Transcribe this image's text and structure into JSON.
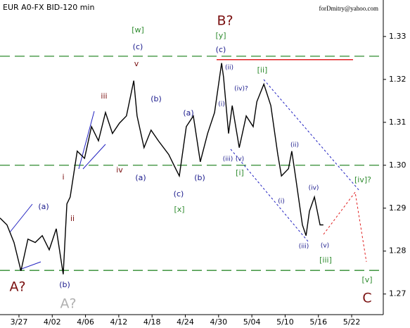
{
  "chart_data": {
    "type": "line",
    "title": "EUR A0-FX BID-120 min",
    "subtitle": "forDmitry@yahoo.com",
    "color": "#000000",
    "x": [
      -0.57,
      -0.36,
      -0.15,
      0.06,
      0.27,
      0.49,
      0.7,
      0.91,
      1.12,
      1.33,
      1.44,
      1.54,
      1.75,
      1.97,
      2.18,
      2.39,
      2.6,
      2.81,
      3.02,
      3.23,
      3.45,
      3.55,
      3.76,
      3.97,
      4.19,
      4.5,
      4.71,
      4.82,
      5.03,
      5.24,
      5.45,
      5.67,
      5.88,
      6.09,
      6.15,
      6.3,
      6.41,
      6.62,
      6.83,
      7.04,
      7.15,
      7.36,
      7.57,
      7.78,
      7.89,
      8.1,
      8.2,
      8.31,
      8.52,
      8.63,
      8.73,
      8.88,
      9.05,
      9.15
    ],
    "values": [
      1.2877,
      1.2861,
      1.282,
      1.2754,
      1.2828,
      1.282,
      1.2836,
      1.2803,
      1.2852,
      1.2746,
      1.291,
      1.2926,
      1.3033,
      1.3016,
      1.309,
      1.3057,
      1.3123,
      1.3074,
      1.3098,
      1.3115,
      1.3197,
      1.3115,
      1.3041,
      1.3082,
      1.3057,
      1.3025,
      1.2992,
      1.2975,
      1.309,
      1.3115,
      1.3008,
      1.3074,
      1.3123,
      1.3238,
      1.3205,
      1.3074,
      1.3139,
      1.3041,
      1.3115,
      1.309,
      1.3148,
      1.3189,
      1.3139,
      1.3025,
      1.2975,
      1.2992,
      1.3033,
      1.2975,
      1.2861,
      1.2836,
      1.2893,
      1.2926,
      1.2861,
      1.2861
    ],
    "xlim": [
      -0.57,
      10.95
    ],
    "xticks": [
      {
        "value": 0,
        "label": "3/27"
      },
      {
        "value": 1,
        "label": "4/02"
      },
      {
        "value": 2,
        "label": "4/06"
      },
      {
        "value": 3,
        "label": "4/12"
      },
      {
        "value": 4,
        "label": "4/18"
      },
      {
        "value": 5,
        "label": "4/24"
      },
      {
        "value": 6,
        "label": "4/30"
      },
      {
        "value": 7,
        "label": "5/04"
      },
      {
        "value": 8,
        "label": "5/10"
      },
      {
        "value": 9,
        "label": "5/16"
      },
      {
        "value": 10,
        "label": "5/22"
      }
    ],
    "ylim": [
      1.2652,
      1.3385
    ],
    "yticks": [
      1.27,
      1.28,
      1.29,
      {
        "value": 1.3,
        "label": "1.30"
      },
      1.31,
      1.32,
      1.33
    ],
    "levels": [
      1.3254,
      1.3,
      1.2755
    ],
    "level_color": "#2e8b2e",
    "resistance": 1.3246,
    "resistance_color": "#e02020",
    "annotations": [
      {
        "text": "A?",
        "color": "#7a1010"
      },
      {
        "text": "(b)",
        "color": "#1a1a8c"
      },
      {
        "text": "A?",
        "color": "#b0b0b0"
      },
      {
        "text": "(a)",
        "color": "#1a1a8c"
      },
      {
        "text": "i",
        "color": "#7a1010"
      },
      {
        "text": "ii",
        "color": "#7a1010"
      },
      {
        "text": "iii",
        "color": "#7a1010"
      },
      {
        "text": "iv",
        "color": "#7a1010"
      },
      {
        "text": "v",
        "color": "#7a1010"
      },
      {
        "text": "[w]",
        "color": "#2e8b2e"
      },
      {
        "text": "(c)",
        "color": "#1a1a8c"
      },
      {
        "text": "(b)",
        "color": "#1a1a8c"
      },
      {
        "text": "(a)",
        "color": "#1a1a8c"
      },
      {
        "text": "(a)",
        "color": "#1a1a8c"
      },
      {
        "text": "(c)",
        "color": "#1a1a8c"
      },
      {
        "text": "[x]",
        "color": "#2e8b2e"
      },
      {
        "text": "(b)",
        "color": "#1a1a8c"
      },
      {
        "text": "B?",
        "color": "#7a1010"
      },
      {
        "text": "[y]",
        "color": "#2e8b2e"
      },
      {
        "text": "(c)",
        "color": "#1a1a8c"
      },
      {
        "text": "(ii)",
        "color": "#1a1a8c"
      },
      {
        "text": "(i)",
        "color": "#1a1a8c"
      },
      {
        "text": "(iv)?",
        "color": "#1a1a8c"
      },
      {
        "text": "(iii)",
        "color": "#1a1a8c"
      },
      {
        "text": "(v)",
        "color": "#1a1a8c"
      },
      {
        "text": "[i]",
        "color": "#2e8b2e"
      },
      {
        "text": "[ii]",
        "color": "#2e8b2e"
      },
      {
        "text": "(ii)",
        "color": "#1a1a8c"
      },
      {
        "text": "(i)",
        "color": "#1a1a8c"
      },
      {
        "text": "(iv)",
        "color": "#1a1a8c"
      },
      {
        "text": "(iii)",
        "color": "#1a1a8c"
      },
      {
        "text": "(v)",
        "color": "#1a1a8c"
      },
      {
        "text": "[iii]",
        "color": "#2e8b2e"
      },
      {
        "text": "[iv]?",
        "color": "#2e8b2e"
      },
      {
        "text": "[v]",
        "color": "#2e8b2e"
      },
      {
        "text": "C",
        "color": "#7a1010"
      }
    ]
  }
}
